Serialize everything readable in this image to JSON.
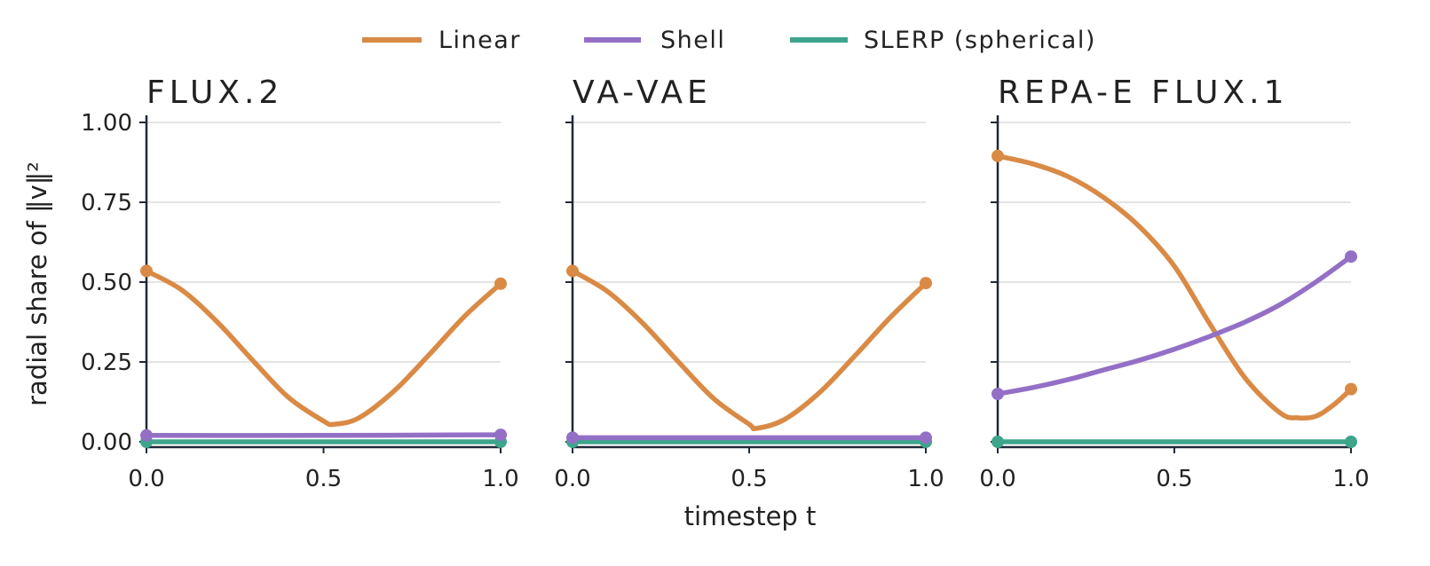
{
  "figure": {
    "ylabel": "radial share of ‖v‖²",
    "xlabel": "timestep t"
  },
  "legend": [
    {
      "name": "Linear",
      "color": "#d98a45"
    },
    {
      "name": "Shell",
      "color": "#9370c6"
    },
    {
      "name": "SLERP (spherical)",
      "color": "#3ea58b"
    }
  ],
  "chart_data": [
    {
      "type": "line",
      "title": "FLUX.2",
      "xlabel": "",
      "ylabel": "radial share of ‖v‖²",
      "xlim": [
        0,
        1
      ],
      "ylim": [
        0,
        1
      ],
      "xticks": [
        "0.0",
        "0.5",
        "1.0"
      ],
      "yticks": [
        "0.00",
        "0.25",
        "0.50",
        "0.75",
        "1.00"
      ],
      "grid": "horizontal",
      "series": [
        {
          "name": "Linear",
          "color": "#d98a45",
          "x": [
            0,
            0.1,
            0.2,
            0.3,
            0.4,
            0.5,
            0.53,
            0.6,
            0.7,
            0.8,
            0.9,
            1.0
          ],
          "y": [
            0.535,
            0.475,
            0.375,
            0.255,
            0.14,
            0.065,
            0.055,
            0.075,
            0.16,
            0.275,
            0.395,
            0.495
          ]
        },
        {
          "name": "Shell",
          "color": "#9370c6",
          "x": [
            0,
            0.5,
            1.0
          ],
          "y": [
            0.02,
            0.02,
            0.022
          ]
        },
        {
          "name": "SLERP (spherical)",
          "color": "#3ea58b",
          "x": [
            0,
            0.5,
            1.0
          ],
          "y": [
            0.0,
            0.0,
            0.0
          ]
        }
      ]
    },
    {
      "type": "line",
      "title": "VA-VAE",
      "xlabel": "timestep t",
      "ylabel": "",
      "xlim": [
        0,
        1
      ],
      "ylim": [
        0,
        1
      ],
      "xticks": [
        "0.0",
        "0.5",
        "1.0"
      ],
      "yticks": [
        "0.00",
        "0.25",
        "0.50",
        "0.75",
        "1.00"
      ],
      "grid": "horizontal",
      "series": [
        {
          "name": "Linear",
          "color": "#d98a45",
          "x": [
            0,
            0.1,
            0.2,
            0.3,
            0.4,
            0.5,
            0.52,
            0.6,
            0.7,
            0.8,
            0.9,
            1.0
          ],
          "y": [
            0.535,
            0.47,
            0.37,
            0.25,
            0.135,
            0.055,
            0.042,
            0.07,
            0.155,
            0.27,
            0.39,
            0.497
          ]
        },
        {
          "name": "Shell",
          "color": "#9370c6",
          "x": [
            0,
            0.5,
            1.0
          ],
          "y": [
            0.013,
            0.013,
            0.013
          ]
        },
        {
          "name": "SLERP (spherical)",
          "color": "#3ea58b",
          "x": [
            0,
            0.5,
            1.0
          ],
          "y": [
            0.0,
            0.0,
            0.0
          ]
        }
      ]
    },
    {
      "type": "line",
      "title": "REPA-E FLUX.1",
      "xlabel": "",
      "ylabel": "",
      "xlim": [
        0,
        1
      ],
      "ylim": [
        0,
        1
      ],
      "xticks": [
        "0.0",
        "0.5",
        "1.0"
      ],
      "yticks": [
        "0.00",
        "0.25",
        "0.50",
        "0.75",
        "1.00"
      ],
      "grid": "horizontal",
      "series": [
        {
          "name": "Linear",
          "color": "#d98a45",
          "x": [
            0,
            0.1,
            0.2,
            0.3,
            0.4,
            0.5,
            0.6,
            0.7,
            0.8,
            0.85,
            0.9,
            0.95,
            1.0
          ],
          "y": [
            0.895,
            0.87,
            0.83,
            0.765,
            0.675,
            0.55,
            0.37,
            0.2,
            0.09,
            0.075,
            0.08,
            0.115,
            0.165
          ]
        },
        {
          "name": "Shell",
          "color": "#9370c6",
          "x": [
            0,
            0.1,
            0.2,
            0.3,
            0.4,
            0.5,
            0.6,
            0.7,
            0.8,
            0.9,
            1.0
          ],
          "y": [
            0.15,
            0.17,
            0.195,
            0.225,
            0.255,
            0.29,
            0.33,
            0.375,
            0.43,
            0.5,
            0.58
          ]
        },
        {
          "name": "SLERP (spherical)",
          "color": "#3ea58b",
          "x": [
            0,
            0.5,
            1.0
          ],
          "y": [
            0.0,
            0.0,
            0.0
          ]
        }
      ]
    }
  ]
}
